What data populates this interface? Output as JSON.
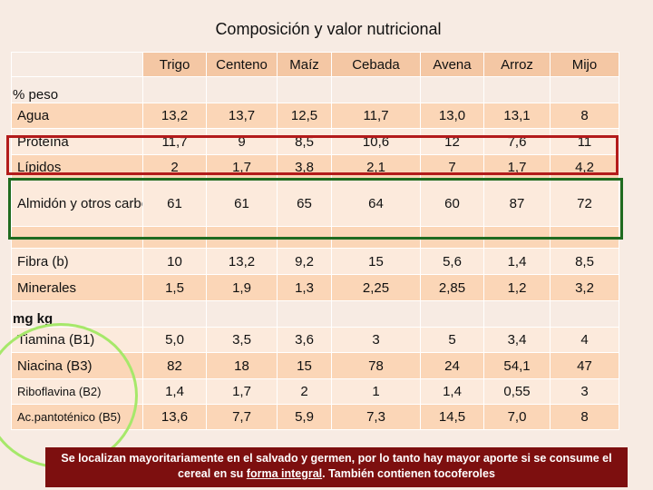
{
  "title": "Composición y valor nutricional",
  "table": {
    "columns": [
      "Trigo",
      "Centeno",
      "Maíz",
      "Cebada",
      "Avena",
      "Arroz",
      "Mijo"
    ],
    "sections": [
      {
        "label": "% peso",
        "rows": [
          {
            "label": "Agua",
            "values": [
              "13,2",
              "13,7",
              "12,5",
              "11,7",
              "13,0",
              "13,1",
              "8"
            ]
          },
          {
            "label": "Proteína",
            "values": [
              "11,7",
              "9",
              "8,5",
              "10,6",
              "12",
              "7,6",
              "11"
            ]
          },
          {
            "label": "Lípidos",
            "values": [
              "2",
              "1,7",
              "3,8",
              "2,1",
              "7",
              "1,7",
              "4,2"
            ]
          },
          {
            "label": "Almidón y otros carbo-hidratos",
            "values": [
              "61",
              "61",
              "65",
              "64",
              "60",
              "87",
              "72"
            ]
          },
          {
            "label": "",
            "values": [
              "",
              "",
              "",
              "",
              "",
              "",
              ""
            ]
          },
          {
            "label": "Fibra (b)",
            "values": [
              "10",
              "13,2",
              "9,2",
              "15",
              "5,6",
              "1,4",
              "8,5"
            ]
          },
          {
            "label": "Minerales",
            "values": [
              "1,5",
              "1,9",
              "1,3",
              "2,25",
              "2,85",
              "1,2",
              "3,2"
            ]
          }
        ]
      },
      {
        "label": "mg kg",
        "rows": [
          {
            "label": "Tiamina (B1)",
            "values": [
              "5,0",
              "3,5",
              "3,6",
              "3",
              "5",
              "3,4",
              "4"
            ]
          },
          {
            "label": "Niacina (B3)",
            "values": [
              "82",
              "18",
              "15",
              "78",
              "24",
              "54,1",
              "47"
            ]
          },
          {
            "label": "Riboflavina (B2)",
            "values": [
              "1,4",
              "1,7",
              "2",
              "1",
              "1,4",
              "0,55",
              "3"
            ]
          },
          {
            "label": "Ac.pantoténico (B5)",
            "values": [
              "13,6",
              "7,7",
              "5,9",
              "7,3",
              "14,5",
              "7,0",
              "8"
            ]
          }
        ]
      }
    ]
  },
  "footnote": {
    "part1": "Se localizan mayoritariamente en el salvado y germen, por lo tanto hay mayor aporte si se consume el cereal en su ",
    "underlined": "forma integral",
    "part2": ". También contienen tocoferoles"
  }
}
